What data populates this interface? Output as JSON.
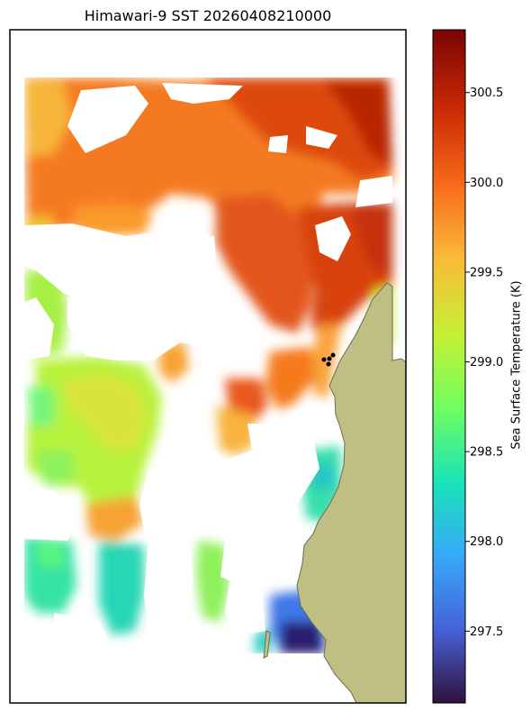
{
  "title": "Himawari-9 SST 20260408210000",
  "colorbar": {
    "label": "Sea Surface Temperature (K)",
    "min": 297.1,
    "max": 300.85,
    "ticks": [
      "297.5",
      "298.0",
      "298.5",
      "299.0",
      "299.5",
      "300.0",
      "300.5"
    ],
    "colors": [
      "#30123b",
      "#4662d7",
      "#36aaf9",
      "#1ae4b6",
      "#72fe5e",
      "#c7ef34",
      "#faba39",
      "#f66b19",
      "#cb2a04",
      "#7a0403"
    ]
  },
  "colors": {
    "land": "#bfbf84",
    "coast": "#6b6b55"
  }
}
